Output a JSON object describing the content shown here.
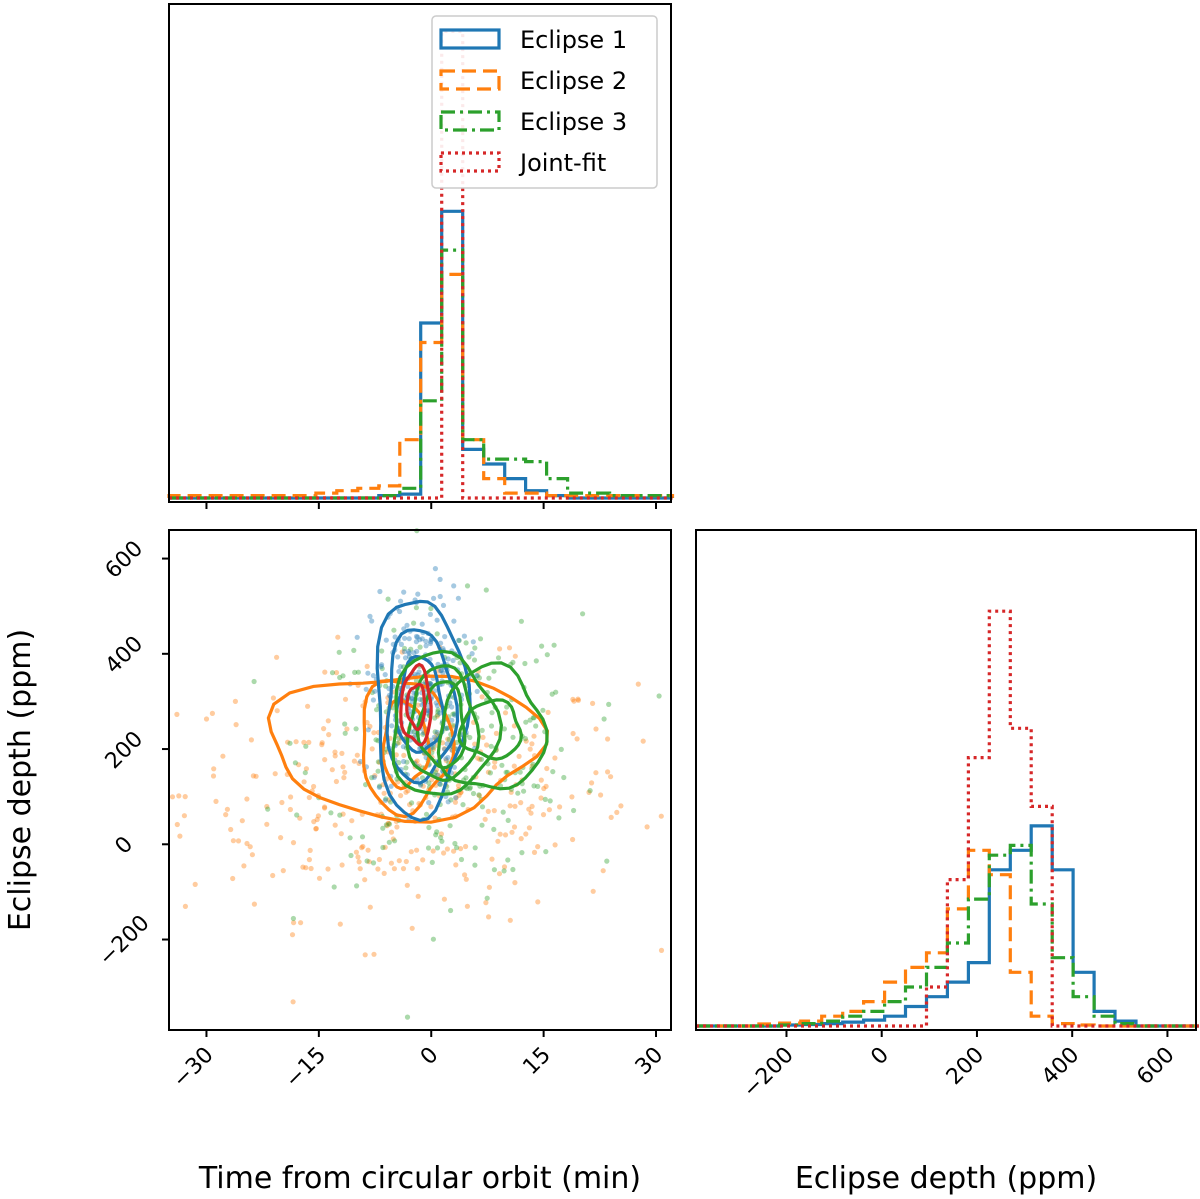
{
  "chart_data": {
    "type": "corner",
    "colors": {
      "Eclipse 1": "#1f77b4",
      "Eclipse 2": "#ff7f0e",
      "Eclipse 3": "#2ca02c",
      "Joint-fit": "#d62728"
    },
    "legend": [
      {
        "label": "Eclipse 1",
        "style": "solid"
      },
      {
        "label": "Eclipse 2",
        "style": "dashed"
      },
      {
        "label": "Eclipse 3",
        "style": "dashdot"
      },
      {
        "label": "Joint-fit",
        "style": "dotted"
      }
    ],
    "axes": {
      "time": {
        "label": "Time from circular orbit (min)",
        "range": [
          -35,
          32
        ],
        "ticks": [
          -30,
          -15,
          0,
          15,
          30
        ],
        "tick_labels": [
          "−30",
          "−15",
          "0",
          "15",
          "30"
        ]
      },
      "depth": {
        "label": "Eclipse depth (ppm)",
        "range": [
          -390,
          660
        ],
        "ticks": [
          -200,
          0,
          200,
          400,
          600
        ],
        "tick_labels": [
          "−200",
          "0",
          "200",
          "400",
          "600"
        ]
      },
      "depth_hist": {
        "label": "Eclipse depth (ppm)",
        "range": [
          -390,
          660
        ],
        "ticks": [
          -200,
          0,
          200,
          400,
          600
        ],
        "tick_labels": [
          "−200",
          "0",
          "200",
          "400",
          "600"
        ]
      }
    },
    "hist_time": {
      "bin_edges": [
        -35,
        -32.2,
        -29.4,
        -26.6,
        -23.8,
        -21,
        -18.2,
        -15.4,
        -12.6,
        -9.8,
        -7,
        -4.2,
        -1.4,
        1.4,
        4.2,
        7,
        9.8,
        12.6,
        15.4,
        18.2,
        21,
        23.8,
        26.6,
        29.4,
        32.2
      ],
      "ymax": 1.0,
      "series": [
        {
          "name": "Eclipse 1",
          "values": [
            0,
            0,
            0,
            0,
            0,
            0,
            0,
            0,
            0,
            0,
            0.005,
            0.008,
            0.36,
            0.59,
            0.1,
            0.07,
            0.04,
            0.015,
            0.005,
            0,
            0,
            0,
            0,
            0
          ]
        },
        {
          "name": "Eclipse 2",
          "values": [
            0.005,
            0.005,
            0.005,
            0.005,
            0.005,
            0.005,
            0.005,
            0.01,
            0.015,
            0.02,
            0.025,
            0.12,
            0.32,
            0.46,
            0.12,
            0.04,
            0.01,
            0.01,
            0.005,
            0.005,
            0.005,
            0.005,
            0.005,
            0.005
          ]
        },
        {
          "name": "Eclipse 3",
          "values": [
            0,
            0,
            0,
            0,
            0,
            0,
            0,
            0,
            0,
            0,
            0.005,
            0.02,
            0.2,
            0.51,
            0.12,
            0.08,
            0.08,
            0.075,
            0.04,
            0.01,
            0.01,
            0.005,
            0.005,
            0.005
          ]
        },
        {
          "name": "Joint-fit",
          "values": [
            0,
            0,
            0,
            0,
            0,
            0,
            0,
            0,
            0,
            0,
            0,
            0,
            0,
            0.96,
            0,
            0,
            0,
            0,
            0,
            0,
            0,
            0,
            0,
            0
          ]
        }
      ]
    },
    "hist_depth": {
      "bin_edges": [
        -390,
        -346,
        -302,
        -258,
        -214,
        -170,
        -126,
        -82,
        -38,
        6,
        50,
        94,
        138,
        182,
        226,
        270,
        314,
        358,
        402,
        446,
        490,
        534,
        578,
        622,
        666
      ],
      "ymax": 1.0,
      "series": [
        {
          "name": "Eclipse 1",
          "values": [
            0,
            0,
            0,
            0,
            0.002,
            0.003,
            0.005,
            0.008,
            0.012,
            0.02,
            0.04,
            0.06,
            0.09,
            0.13,
            0.32,
            0.36,
            0.41,
            0.32,
            0.11,
            0.03,
            0.01,
            0,
            0,
            0
          ]
        },
        {
          "name": "Eclipse 2",
          "values": [
            0,
            0,
            0,
            0.004,
            0.006,
            0.01,
            0.02,
            0.03,
            0.05,
            0.09,
            0.12,
            0.15,
            0.24,
            0.36,
            0.31,
            0.11,
            0.02,
            0.005,
            0.002,
            0,
            0,
            0,
            0,
            0
          ]
        },
        {
          "name": "Eclipse 3",
          "values": [
            0,
            0,
            0,
            0,
            0.002,
            0.005,
            0.01,
            0.02,
            0.03,
            0.05,
            0.08,
            0.12,
            0.17,
            0.26,
            0.35,
            0.37,
            0.25,
            0.14,
            0.06,
            0.02,
            0.005,
            0,
            0,
            0
          ]
        },
        {
          "name": "Joint-fit",
          "values": [
            0,
            0,
            0,
            0,
            0,
            0,
            0,
            0,
            0,
            0,
            0,
            0.08,
            0.3,
            0.55,
            0.85,
            0.61,
            0.45,
            0,
            0,
            0,
            0,
            0,
            0,
            0
          ]
        }
      ]
    },
    "scatter": {
      "note": "posterior samples",
      "series": [
        {
          "name": "Eclipse 1",
          "mean_time": -1.5,
          "sd_time": 3.2,
          "mean_depth": 310,
          "sd_depth": 115
        },
        {
          "name": "Eclipse 2",
          "mean_time": -3,
          "sd_time": 15,
          "mean_depth": 110,
          "sd_depth": 130
        },
        {
          "name": "Eclipse 3",
          "mean_time": 2,
          "sd_time": 9,
          "mean_depth": 200,
          "sd_depth": 140
        }
      ]
    },
    "contours": [
      {
        "name": "Eclipse 2",
        "cx": -3.5,
        "cy": 210,
        "levels": [
          {
            "rx": 18,
            "ry": 150
          },
          {
            "rx": 6,
            "ry": 140
          },
          {
            "rx": 3,
            "ry": 90
          }
        ]
      },
      {
        "name": "Eclipse 1",
        "cx": -1.5,
        "cy": 290,
        "levels": [
          {
            "rx": 6,
            "ry": 230
          },
          {
            "rx": 4.5,
            "ry": 160
          },
          {
            "rx": 3,
            "ry": 100
          }
        ]
      },
      {
        "name": "Eclipse 3",
        "cx": 1.5,
        "cy": 250,
        "levels": [
          {
            "rx": 7,
            "ry": 150
          },
          {
            "rx": 4.5,
            "ry": 120
          },
          {
            "rx": 3,
            "ry": 90
          }
        ]
      },
      {
        "name": "Eclipse 3",
        "cx": 8,
        "cy": 240,
        "levels": [
          {
            "rx": 7,
            "ry": 130
          },
          {
            "rx": 4,
            "ry": 60
          }
        ]
      },
      {
        "name": "Joint-fit",
        "cx": -2,
        "cy": 290,
        "levels": [
          {
            "rx": 2,
            "ry": 80
          },
          {
            "rx": 1.2,
            "ry": 45
          }
        ]
      }
    ]
  }
}
